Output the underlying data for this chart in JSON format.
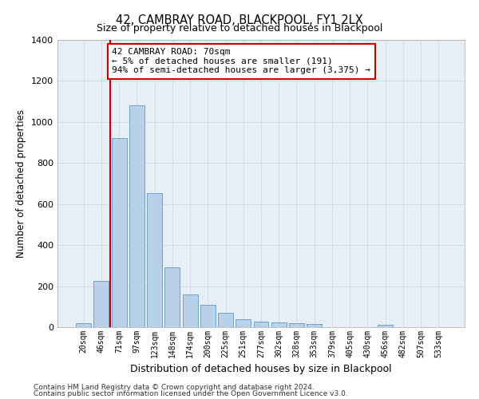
{
  "title": "42, CAMBRAY ROAD, BLACKPOOL, FY1 2LX",
  "subtitle": "Size of property relative to detached houses in Blackpool",
  "xlabel": "Distribution of detached houses by size in Blackpool",
  "ylabel": "Number of detached properties",
  "footer1": "Contains HM Land Registry data © Crown copyright and database right 2024.",
  "footer2": "Contains public sector information licensed under the Open Government Licence v3.0.",
  "categories": [
    "20sqm",
    "46sqm",
    "71sqm",
    "97sqm",
    "123sqm",
    "148sqm",
    "174sqm",
    "200sqm",
    "225sqm",
    "251sqm",
    "277sqm",
    "302sqm",
    "328sqm",
    "353sqm",
    "379sqm",
    "405sqm",
    "430sqm",
    "456sqm",
    "482sqm",
    "507sqm",
    "533sqm"
  ],
  "values": [
    18,
    225,
    920,
    1080,
    655,
    290,
    158,
    107,
    70,
    38,
    27,
    24,
    20,
    14,
    0,
    0,
    0,
    11,
    0,
    0,
    0
  ],
  "bar_color": "#b8d0e8",
  "bar_edge_color": "#6ba3cc",
  "grid_color": "#d4dce8",
  "annotation_box_color": "#cc0000",
  "annotation_line_color": "#cc0000",
  "property_bar_index": 2,
  "annotation_text1": "42 CAMBRAY ROAD: 70sqm",
  "annotation_text2": "← 5% of detached houses are smaller (191)",
  "annotation_text3": "94% of semi-detached houses are larger (3,375) →",
  "bg_color": "#e8eef5",
  "ylim": [
    0,
    1400
  ],
  "yticks": [
    0,
    200,
    400,
    600,
    800,
    1000,
    1200,
    1400
  ]
}
